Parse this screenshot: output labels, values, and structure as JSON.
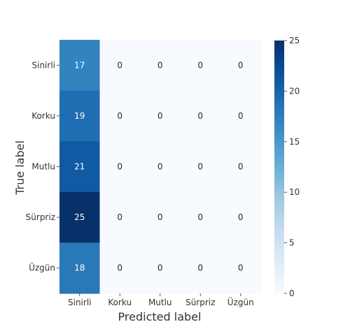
{
  "chart_data": {
    "type": "heatmap",
    "title": "",
    "xlabel": "Predicted label",
    "ylabel": "True label",
    "x_categories": [
      "Sinirli",
      "Korku",
      "Mutlu",
      "Sürpriz",
      "Üzgün"
    ],
    "y_categories": [
      "Sinirli",
      "Korku",
      "Mutlu",
      "Sürpriz",
      "Üzgün"
    ],
    "values": [
      [
        17,
        0,
        0,
        0,
        0
      ],
      [
        19,
        0,
        0,
        0,
        0
      ],
      [
        21,
        0,
        0,
        0,
        0
      ],
      [
        25,
        0,
        0,
        0,
        0
      ],
      [
        18,
        0,
        0,
        0,
        0
      ]
    ],
    "colormap": "Blues",
    "colorbar": {
      "range": [
        0,
        25
      ],
      "ticks": [
        "0",
        "5",
        "10",
        "15",
        "20",
        "25"
      ]
    },
    "grid": false
  }
}
